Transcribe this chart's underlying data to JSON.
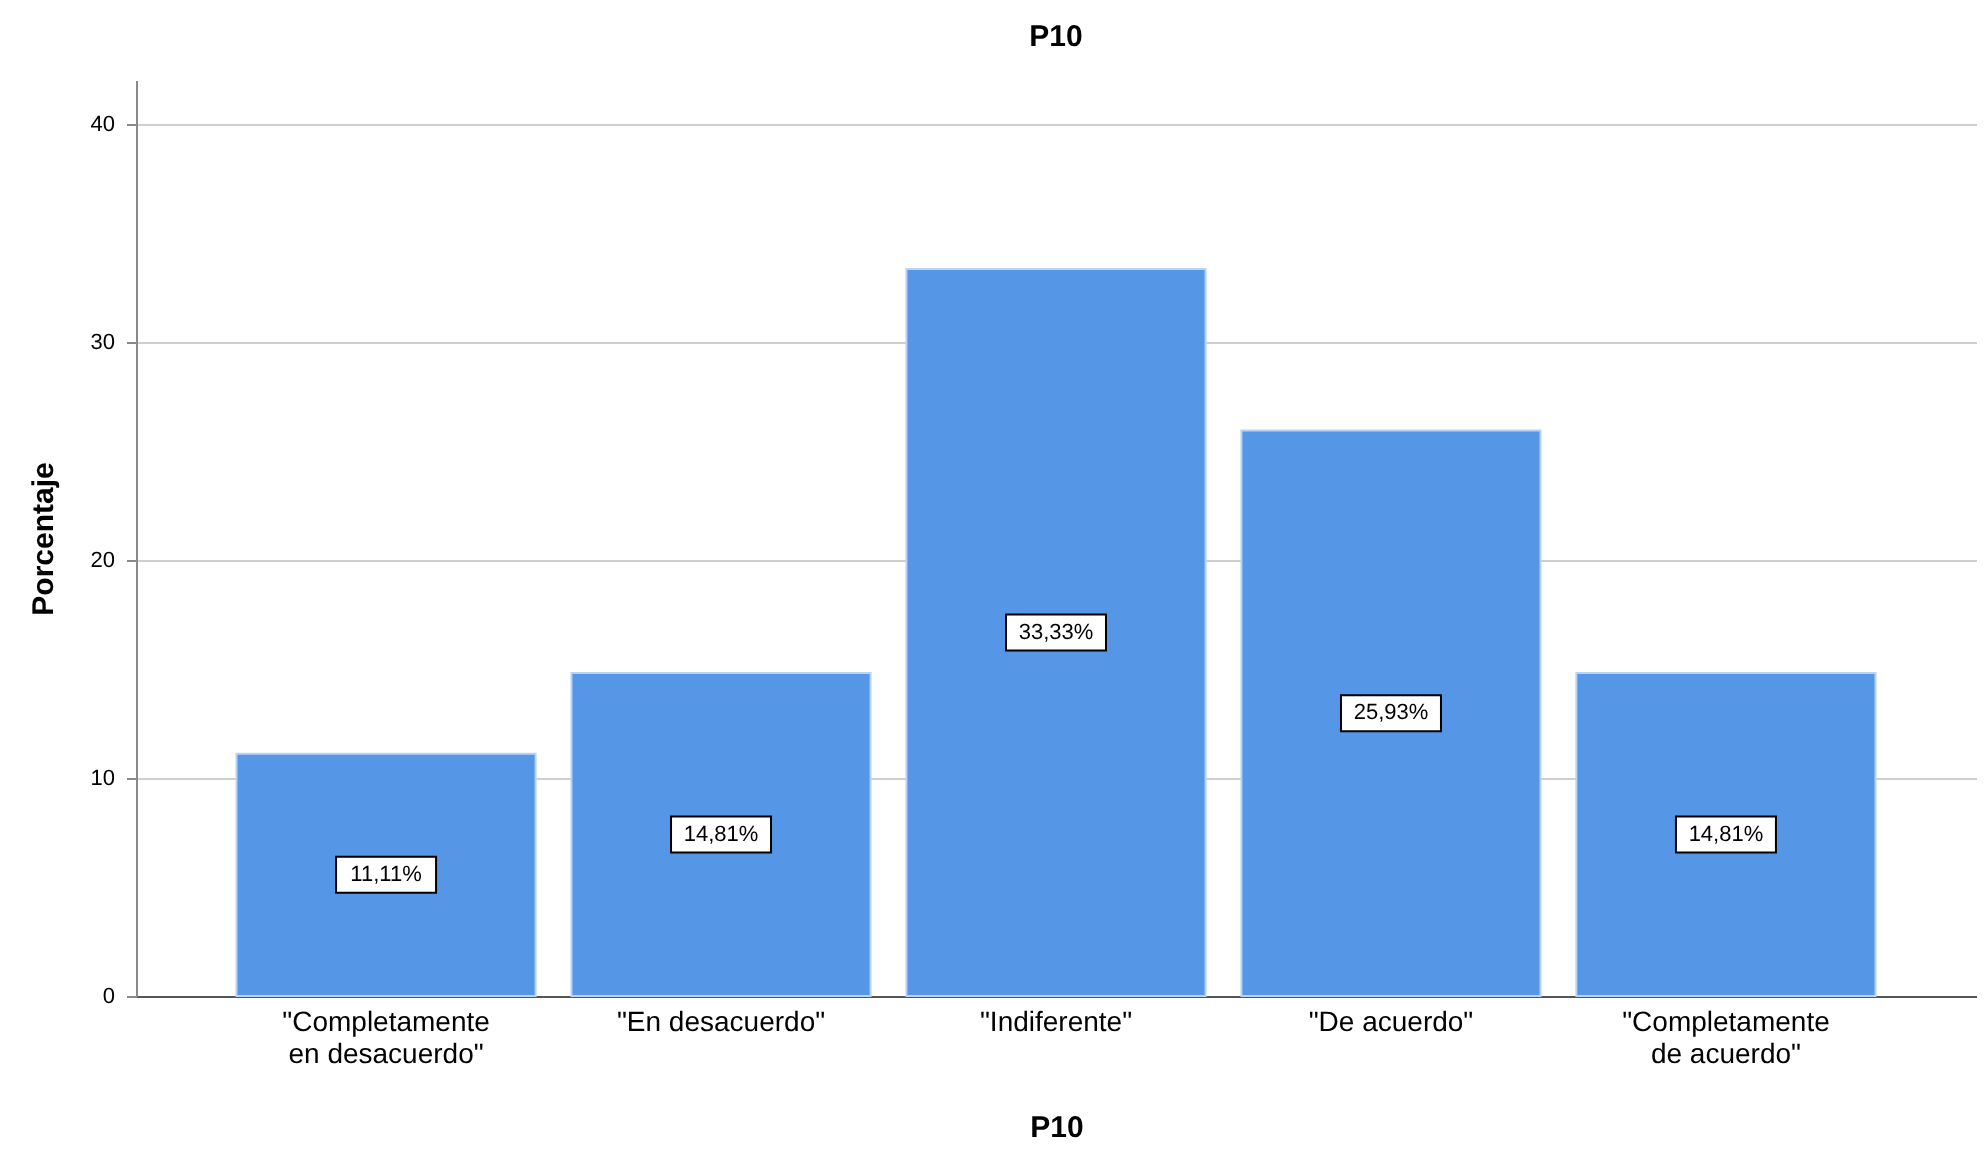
{
  "chart_data": {
    "type": "bar",
    "title": "P10",
    "xlabel": "P10",
    "ylabel": "Porcentaje",
    "categories": [
      "\"Completamente en desacuerdo\"",
      "\"En desacuerdo\"",
      "\"Indiferente\"",
      "\"De acuerdo\"",
      "\"Completamente de acuerdo\""
    ],
    "values": [
      11.11,
      14.81,
      33.33,
      25.93,
      14.81
    ],
    "value_labels": [
      "11,11%",
      "14,81%",
      "33,33%",
      "25,93%",
      "14,81%"
    ],
    "color": "#5596e6",
    "ylim": [
      0,
      42
    ],
    "yticks": [
      0,
      10,
      20,
      30,
      40
    ],
    "grid": "y"
  }
}
